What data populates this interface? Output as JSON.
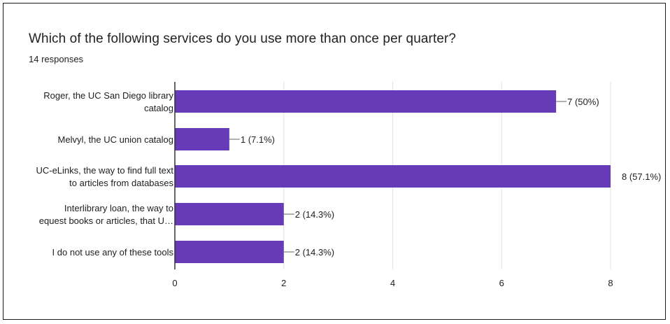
{
  "question": "Which of the following services do you use more than once per quarter?",
  "responses_text": "14 responses",
  "colors": {
    "bar": "#673ab7",
    "grid": "#e0e0e0",
    "axis": "#333333",
    "text": "#202124",
    "leader": "#666666"
  },
  "chart_data": {
    "type": "bar",
    "orientation": "horizontal",
    "title": "Which of the following services do you use more than once per quarter?",
    "subtitle": "14 responses",
    "categories": [
      [
        "Roger, the UC San Diego library",
        "catalog"
      ],
      [
        "Melvyl, the UC union catalog"
      ],
      [
        "UC-eLinks, the way to find full text",
        "to articles from databases"
      ],
      [
        "Interlibrary loan, the way to",
        "equest books or articles, that U…"
      ],
      [
        "I do not use any of these tools"
      ]
    ],
    "values": [
      7,
      1,
      8,
      2,
      2
    ],
    "data_labels": [
      "7 (50%)",
      "1 (7.1%)",
      "8 (57.1%)",
      "2 (14.3%)",
      "2 (14.3%)"
    ],
    "xticks": [
      0,
      2,
      4,
      6,
      8
    ],
    "xlim": [
      0,
      8
    ],
    "grid": true
  }
}
